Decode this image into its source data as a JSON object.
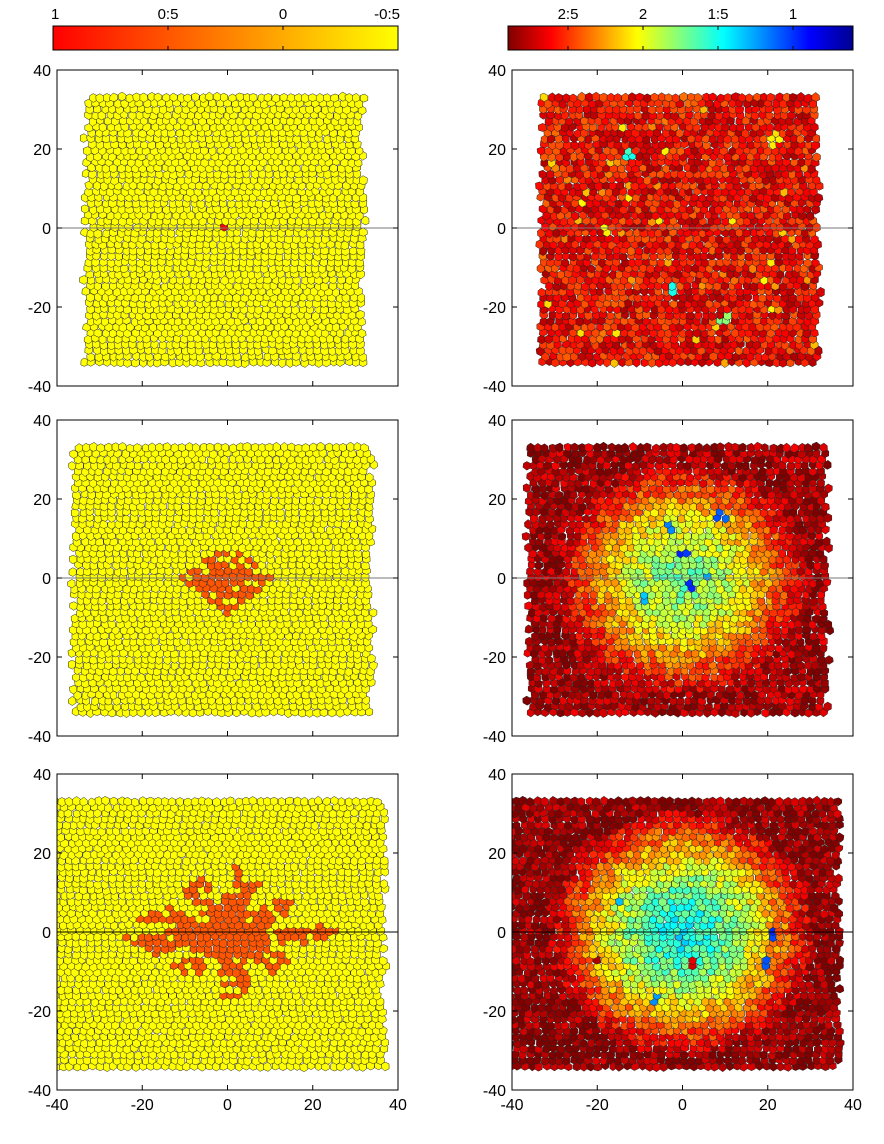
{
  "chart_data": {
    "type": "heatmap",
    "description_free": true,
    "layout": {
      "rows": 3,
      "cols": 2
    },
    "axes": {
      "xlim": [
        -40,
        40
      ],
      "ylim": [
        -40,
        40
      ],
      "xticks": [
        -40,
        -20,
        0,
        20,
        40
      ],
      "yticks": [
        -40,
        -20,
        0,
        20,
        40
      ],
      "xtick_labels": [
        "-40",
        "-20",
        "0",
        "20",
        "40"
      ],
      "ytick_labels": [
        "-40",
        "-20",
        "0",
        "20",
        "40"
      ]
    },
    "colorbars": [
      {
        "column": "left",
        "range": [
          1,
          -0.5
        ],
        "ticks": [
          1,
          0.5,
          0,
          -0.5
        ],
        "tick_labels": [
          "1",
          "0:5",
          "0",
          "-0:5"
        ],
        "colormap": [
          "#ff0000",
          "#ff4000",
          "#ff8000",
          "#ffc000",
          "#ffff00"
        ]
      },
      {
        "column": "right",
        "range": [
          2.9,
          0.6
        ],
        "ticks": [
          2.5,
          2,
          1.5,
          1
        ],
        "tick_labels": [
          "2:5",
          "2",
          "1:5",
          "1"
        ],
        "colormap": [
          "#800000",
          "#ff0000",
          "#ff8000",
          "#ffff00",
          "#80ff80",
          "#00ffff",
          "#0080ff",
          "#0000ff",
          "#000090"
        ]
      }
    ],
    "panels": [
      {
        "id": "row1-left",
        "row": 1,
        "col": "left",
        "colorbar": "left",
        "domain_x": [
          -33,
          32
        ],
        "domain_y": [
          -34,
          34
        ],
        "background_value": -0.5,
        "clusters": [
          {
            "kind": "dot",
            "center": [
              -0.5,
              0.5
            ],
            "value": 1.0,
            "radius_units": 1.0
          }
        ]
      },
      {
        "id": "row1-right",
        "row": 1,
        "col": "right",
        "colorbar": "right",
        "domain_x": [
          -33,
          32
        ],
        "domain_y": [
          -34,
          34
        ],
        "background_range": [
          2.4,
          2.8
        ],
        "hotspots": [
          {
            "center": [
              -13,
              18.5
            ],
            "value": 1.55
          },
          {
            "center": [
              -2,
              -15
            ],
            "value": 1.5
          },
          {
            "center": [
              10,
              -23
            ],
            "value": 1.8
          },
          {
            "center": [
              -18,
              0
            ],
            "value": 2.05
          },
          {
            "center": [
              22,
              23
            ],
            "value": 2.1
          }
        ]
      },
      {
        "id": "row2-left",
        "row": 2,
        "col": "left",
        "colorbar": "left",
        "domain_x": [
          -36,
          34
        ],
        "domain_y": [
          -34,
          34
        ],
        "background_value": -0.5,
        "clusters": [
          {
            "kind": "diamond",
            "center": [
              0,
              0
            ],
            "half_width": 11,
            "half_height": 9,
            "value": 0.5,
            "fill": 0.8
          }
        ]
      },
      {
        "id": "row2-right",
        "row": 2,
        "col": "right",
        "colorbar": "right",
        "domain_x": [
          -36,
          34
        ],
        "domain_y": [
          -34,
          34
        ],
        "gradient": {
          "center": [
            0,
            0
          ],
          "inner_value": 1.7,
          "outer_value": 2.8,
          "radius": 30
        },
        "hotspots": [
          {
            "center": [
              0,
              6
            ],
            "value": 1.0
          },
          {
            "center": [
              -3,
              12.5
            ],
            "value": 1.2
          },
          {
            "center": [
              9,
              15.5
            ],
            "value": 1.1
          },
          {
            "center": [
              -9,
              -4.5
            ],
            "value": 1.3
          },
          {
            "center": [
              6,
              0
            ],
            "value": 1.3
          },
          {
            "center": [
              2,
              -2
            ],
            "value": 1.0
          }
        ]
      },
      {
        "id": "row3-left",
        "row": 3,
        "col": "left",
        "colorbar": "left",
        "domain_x": [
          -42,
          37
        ],
        "domain_y": [
          -34,
          34
        ],
        "background_value": -0.5,
        "clusters": [
          {
            "kind": "dendrite",
            "center": [
              0,
              0
            ],
            "half_width": 26,
            "half_height": 18,
            "value": 0.5,
            "fill": 0.75
          }
        ]
      },
      {
        "id": "row3-right",
        "row": 3,
        "col": "right",
        "colorbar": "right",
        "domain_x": [
          -42,
          37
        ],
        "domain_y": [
          -34,
          34
        ],
        "gradient": {
          "center": [
            0,
            0
          ],
          "inner_value": 1.45,
          "outer_value": 2.85,
          "radius": 32
        },
        "hotspots": [
          {
            "center": [
              -14.5,
              8
            ],
            "value": 1.3
          },
          {
            "center": [
              21,
              -1
            ],
            "value": 1.0
          },
          {
            "center": [
              20,
              -8
            ],
            "value": 1.1
          },
          {
            "center": [
              -6,
              -16.5
            ],
            "value": 1.2
          },
          {
            "center": [
              -20,
              -7
            ],
            "value": 2.8
          },
          {
            "center": [
              2,
              -8
            ],
            "value": 2.7
          }
        ]
      }
    ]
  }
}
